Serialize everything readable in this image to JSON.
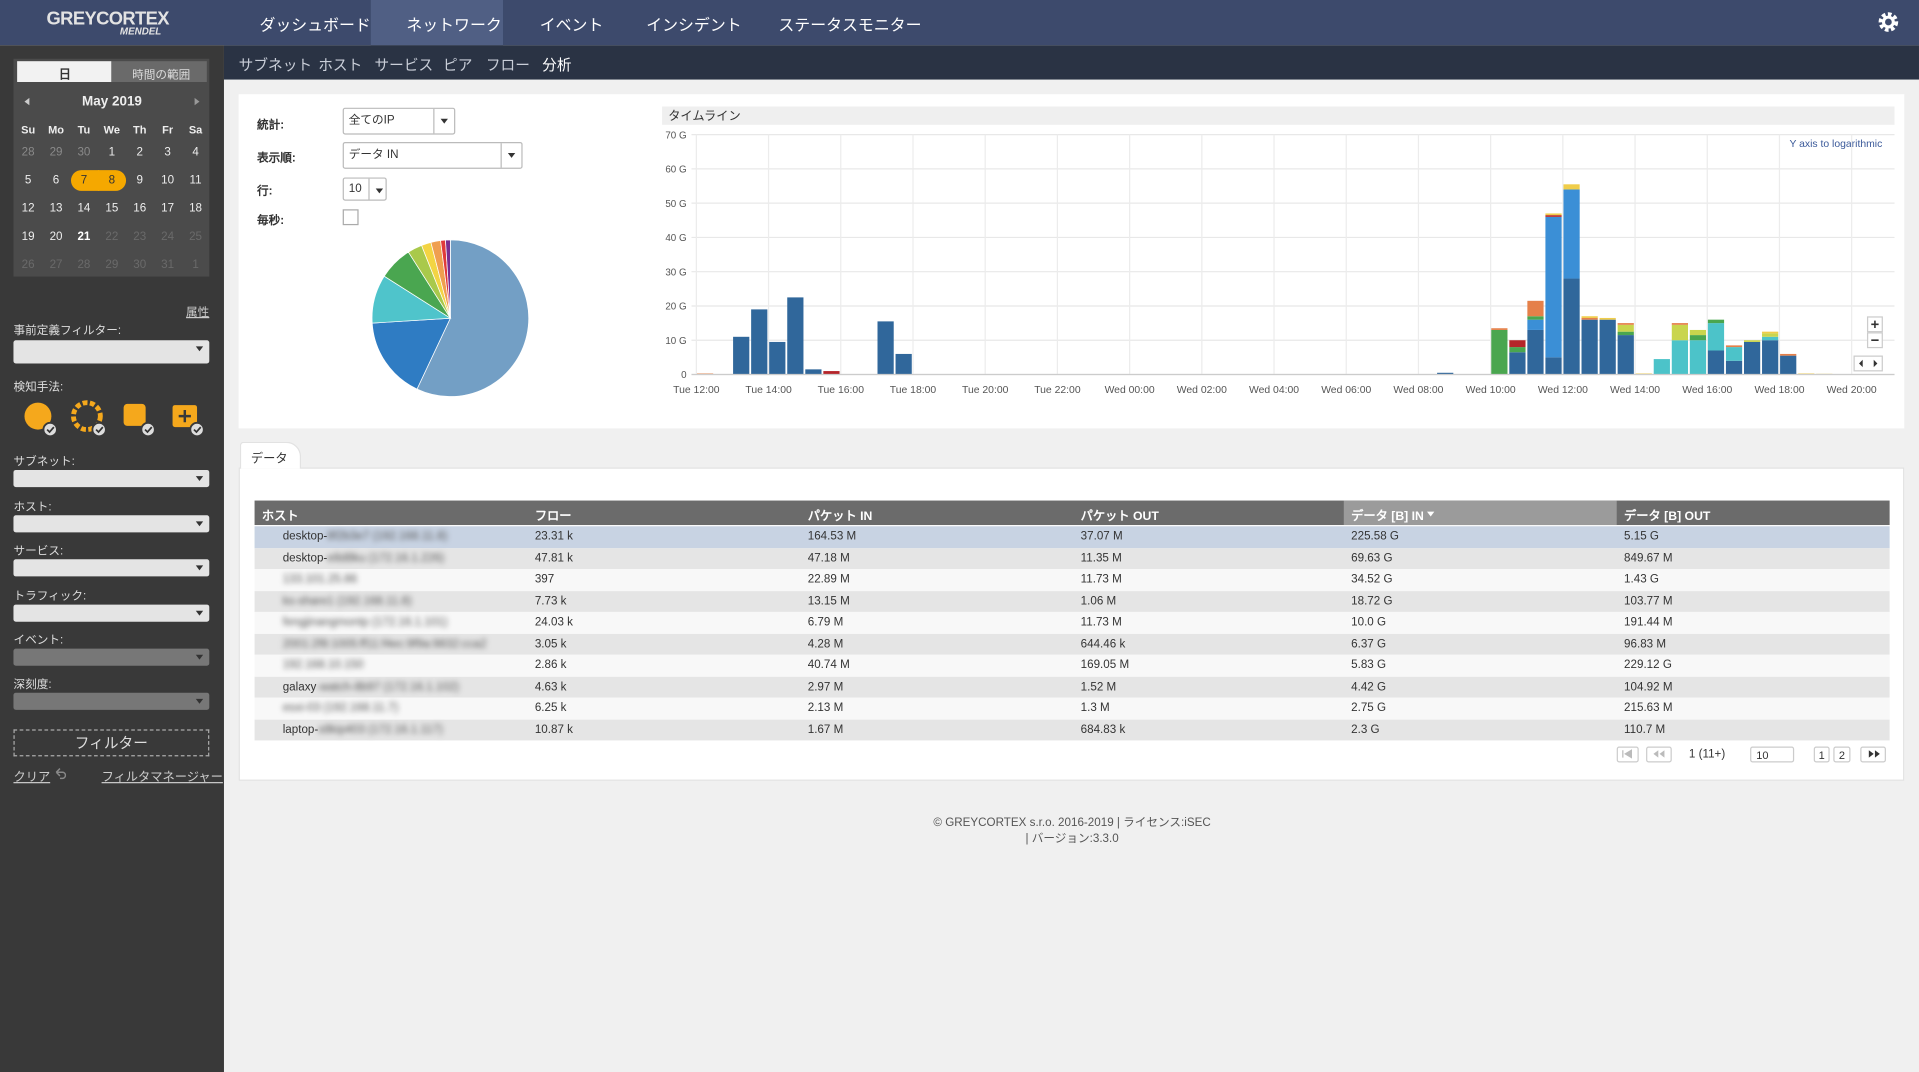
{
  "navbar": {
    "logo": "GREYCORTEX",
    "logo_sub": "MENDEL",
    "items": [
      "ダッシュボード",
      "ネットワーク",
      "イベント",
      "インシデント",
      "ステータスモニター"
    ],
    "active": 1
  },
  "subnav": {
    "items": [
      "サブネット",
      "ホスト",
      "サービス",
      "ピア",
      "フロー",
      "分析"
    ],
    "active": 5
  },
  "sidebar": {
    "calendar": {
      "tabs": [
        "日",
        "時間の範囲"
      ],
      "month": "May 2019",
      "weekdays": [
        "Su",
        "Mo",
        "Tu",
        "We",
        "Th",
        "Fr",
        "Sa"
      ],
      "days": [
        28,
        29,
        30,
        1,
        2,
        3,
        4,
        5,
        6,
        7,
        8,
        9,
        10,
        11,
        12,
        13,
        14,
        15,
        16,
        17,
        18,
        19,
        20,
        21,
        22,
        23,
        24,
        25,
        26,
        27,
        28,
        29,
        30,
        31,
        1
      ],
      "day_state": [
        "other",
        "other",
        "other",
        "cur",
        "cur",
        "cur",
        "cur",
        "cur",
        "cur",
        "sel",
        "sel",
        "cur",
        "cur",
        "cur",
        "cur",
        "cur",
        "cur",
        "cur",
        "cur",
        "cur",
        "cur",
        "cur",
        "cur",
        "today",
        "future",
        "future",
        "future",
        "future",
        "future",
        "future",
        "future",
        "future",
        "future",
        "future",
        "next"
      ]
    },
    "attr_link": "属性",
    "predefined_label": "事前定義フィルター:",
    "detection_label": "検知手法:",
    "filters": [
      "サブネット:",
      "ホスト:",
      "サービス:",
      "トラフィック:",
      "イベント:",
      "深刻度:"
    ],
    "filter_button": "フィルター",
    "clear": "クリア",
    "manager": "フィルタマネージャー"
  },
  "form": {
    "stat_label": "統計:",
    "stat_value": "全てのIP",
    "order_label": "表示順:",
    "order_value": "データ IN",
    "rows_label": "行:",
    "rows_value": "10",
    "persec_label": "毎秒:"
  },
  "chart_data": [
    {
      "type": "pie",
      "values": [
        57,
        17,
        10,
        7,
        3,
        2,
        2,
        1,
        1
      ],
      "colors": [
        "#739fc5",
        "#2f7cc3",
        "#4fc4cb",
        "#4aa650",
        "#a9c94b",
        "#f3d443",
        "#ef9f4f",
        "#e03a3a",
        "#7b2d8e"
      ]
    },
    {
      "type": "bar",
      "stacked": true,
      "title": "タイムライン",
      "annotation": "Y axis to logarithmic",
      "categories": [
        "Tue 12:00",
        null,
        null,
        null,
        "Tue 14:00",
        null,
        null,
        null,
        "Tue 16:00",
        null,
        null,
        null,
        "Tue 18:00",
        null,
        null,
        null,
        "Tue 20:00",
        null,
        null,
        null,
        "Tue 22:00",
        null,
        null,
        null,
        "Wed 00:00",
        null,
        null,
        null,
        "Wed 02:00",
        null,
        null,
        null,
        "Wed 04:00",
        null,
        null,
        null,
        "Wed 06:00",
        null,
        null,
        null,
        "Wed 08:00",
        null,
        null,
        null,
        "Wed 10:00",
        null,
        null,
        null,
        "Wed 12:00",
        null,
        null,
        null,
        "Wed 14:00",
        null,
        null,
        null,
        "Wed 16:00",
        null,
        null,
        null,
        "Wed 18:00",
        null,
        null,
        null,
        "Wed 20:00",
        null
      ],
      "series": [
        {
          "color": "#30679b",
          "values": [
            0,
            0,
            11,
            19,
            9.5,
            22.5,
            1.5,
            0,
            0,
            0,
            15.5,
            6,
            0,
            0,
            0,
            0,
            0,
            0,
            0,
            0,
            0,
            0,
            0,
            0,
            0,
            0,
            0,
            0,
            0,
            0,
            0,
            0,
            0,
            0,
            0,
            0,
            0,
            0,
            0,
            0,
            0,
            0.5,
            0,
            0,
            0,
            6.5,
            13,
            5,
            28,
            16,
            16,
            11.5,
            0,
            0,
            0,
            0,
            7,
            4,
            9.5,
            10,
            5.5,
            0,
            0,
            0,
            0,
            0
          ]
        },
        {
          "color": "#3b8fd6",
          "values": [
            0,
            0,
            0,
            0,
            0,
            0,
            0,
            0,
            0,
            0,
            0,
            0,
            0,
            0,
            0,
            0,
            0,
            0,
            0,
            0,
            0,
            0,
            0,
            0,
            0,
            0,
            0,
            0,
            0,
            0,
            0,
            0,
            0,
            0,
            0,
            0,
            0,
            0,
            0,
            0,
            0,
            0,
            0,
            0,
            0,
            0,
            3,
            41,
            26,
            0,
            0,
            0,
            0,
            0,
            0,
            0,
            0,
            0,
            0,
            0,
            0,
            0,
            0,
            0,
            0,
            0
          ]
        },
        {
          "color": "#4cc3c9",
          "values": [
            0,
            0,
            0,
            0,
            0,
            0,
            0,
            0,
            0,
            0,
            0,
            0,
            0,
            0,
            0,
            0,
            0,
            0,
            0,
            0,
            0,
            0,
            0,
            0,
            0,
            0,
            0,
            0,
            0,
            0,
            0,
            0,
            0,
            0,
            0,
            0,
            0,
            0,
            0,
            0,
            0,
            0,
            0,
            0,
            0,
            0,
            0,
            0,
            0,
            0,
            0,
            0,
            0,
            4.5,
            10,
            10,
            8,
            4,
            0,
            1,
            0,
            0,
            0,
            0,
            0,
            0
          ]
        },
        {
          "color": "#4aa64f",
          "values": [
            0,
            0,
            0,
            0,
            0,
            0,
            0,
            0,
            0,
            0,
            0,
            0,
            0,
            0,
            0,
            0,
            0,
            0,
            0,
            0,
            0,
            0,
            0,
            0,
            0,
            0,
            0,
            0,
            0,
            0,
            0,
            0,
            0,
            0,
            0,
            0,
            0,
            0,
            0,
            0,
            0,
            0,
            0,
            0,
            13,
            1.5,
            1,
            0,
            0,
            0,
            0,
            1,
            0,
            0,
            0,
            1.5,
            1,
            0,
            0,
            0,
            0,
            0,
            0,
            0,
            0,
            0
          ]
        },
        {
          "color": "#c9d54d",
          "values": [
            0,
            0,
            0,
            0,
            0,
            0,
            0,
            0,
            0,
            0,
            0,
            0,
            0,
            0,
            0,
            0,
            0,
            0,
            0,
            0,
            0,
            0,
            0,
            0,
            0,
            0,
            0,
            0,
            0,
            0,
            0,
            0,
            0,
            0,
            0,
            0,
            0,
            0,
            0,
            0,
            0,
            0,
            0,
            0,
            0,
            0,
            0,
            0,
            0,
            0,
            0,
            2,
            0,
            0,
            4.5,
            1.5,
            0,
            0,
            0.5,
            1,
            0,
            0,
            0,
            0,
            0,
            0
          ]
        },
        {
          "color": "#e58049",
          "values": [
            0.3,
            0,
            0,
            0,
            0,
            0,
            0,
            0,
            0,
            0,
            0,
            0,
            0,
            0,
            0,
            0,
            0,
            0,
            0,
            0,
            0,
            0,
            0,
            0,
            0,
            0,
            0,
            0,
            0,
            0,
            0,
            0,
            0,
            0,
            0,
            0,
            0,
            0,
            0,
            0,
            0,
            0,
            0,
            0,
            0.5,
            0,
            4.5,
            0,
            0,
            0.5,
            0,
            0.5,
            0,
            0,
            0.5,
            0,
            0,
            0.5,
            0,
            0,
            0.5,
            0,
            0,
            0,
            0,
            0
          ]
        },
        {
          "color": "#b5252a",
          "values": [
            0,
            0,
            0,
            0,
            0,
            0,
            0,
            1,
            0,
            0,
            0,
            0,
            0,
            0,
            0,
            0,
            0,
            0,
            0,
            0,
            0,
            0,
            0,
            0,
            0,
            0,
            0,
            0,
            0,
            0,
            0,
            0,
            0,
            0,
            0,
            0,
            0,
            0,
            0,
            0,
            0,
            0,
            0,
            0,
            0,
            2,
            0,
            0.5,
            0,
            0,
            0,
            0,
            0,
            0,
            0,
            0,
            0,
            0,
            0,
            0,
            0,
            0,
            0,
            0,
            0,
            0
          ]
        },
        {
          "color": "#f0cd4a",
          "values": [
            0,
            0,
            0,
            0,
            0,
            0,
            0,
            0,
            0,
            0,
            0,
            0,
            0,
            0,
            0,
            0,
            0,
            0,
            0,
            0,
            0,
            0,
            0,
            0,
            0,
            0,
            0,
            0,
            0,
            0,
            0,
            0,
            0,
            0,
            0,
            0,
            0,
            0,
            0,
            0,
            0,
            0,
            0,
            0,
            0,
            0,
            0,
            0.5,
            1.5,
            0.5,
            0.5,
            0,
            0.3,
            0,
            0,
            0,
            0,
            0,
            0,
            0.5,
            0,
            0.3,
            0.2,
            0,
            0,
            0
          ]
        }
      ],
      "ylim": [
        0,
        70
      ],
      "yticks": [
        0,
        {
          "value": 10,
          "label": "10 G"
        },
        {
          "value": 20,
          "label": "20 G"
        },
        {
          "value": 30,
          "label": "30 G"
        },
        {
          "value": 40,
          "label": "40 G"
        },
        {
          "value": 50,
          "label": "50 G"
        },
        {
          "value": 60,
          "label": "60 G"
        },
        {
          "value": 70,
          "label": "70 G"
        }
      ],
      "grid": true
    }
  ],
  "tab": "データ",
  "table": {
    "columns": [
      "ホスト",
      "フロー",
      "パケット IN",
      "パケット OUT",
      "データ [B] IN",
      "データ [B] OUT"
    ],
    "sort_column": 4,
    "selected_row": 0,
    "rows": [
      {
        "icon": "pc",
        "host": "desktop-",
        "host_blurred": "8f2b3e7 (192.168.11.8)",
        "flows": "23.31 k",
        "packets_in": "164.53 M",
        "packets_out": "37.07 M",
        "data_in": "225.58 G",
        "data_out": "5.15 G"
      },
      {
        "icon": "pc",
        "host": "desktop-",
        "host_blurred": "e8d8ku (172.16.1.226)",
        "flows": "47.81 k",
        "packets_in": "47.18 M",
        "packets_out": "11.35 M",
        "data_in": "69.63 G",
        "data_out": "849.67 M"
      },
      {
        "icon": "jp",
        "host_blurred": "133.101.25.86",
        "flows": "397",
        "packets_in": "22.89 M",
        "packets_out": "11.73 M",
        "data_in": "34.52 G",
        "data_out": "1.43 G"
      },
      {
        "icon": "pc",
        "host_blurred": "ks-share1 (192.168.11.8)",
        "flows": "7.73 k",
        "packets_in": "13.15 M",
        "packets_out": "1.06 M",
        "data_in": "18.72 G",
        "data_out": "103.77 M"
      },
      {
        "icon": "pc",
        "host_blurred": "fengjinangmontp (172.16.1.101)",
        "flows": "24.03 k",
        "packets_in": "6.79 M",
        "packets_out": "11.73 M",
        "data_in": "10.0 G",
        "data_out": "191.44 M"
      },
      {
        "icon": "jp",
        "host_blurred": "2001:2f8:1005:ff11:f4ec:9f9a:9832:cca2",
        "flows": "3.05 k",
        "packets_in": "4.28 M",
        "packets_out": "644.46 k",
        "data_in": "6.37 G",
        "data_out": "96.83 M"
      },
      {
        "icon": "pc",
        "host_blurred": "192.168.10.150",
        "flows": "2.86 k",
        "packets_in": "40.74 M",
        "packets_out": "169.05 M",
        "data_in": "5.83 G",
        "data_out": "229.12 G"
      },
      {
        "icon": "pc",
        "host": "galaxy",
        "host_blurred": "-watch-8b97 (172.16.1.102)",
        "flows": "4.63 k",
        "packets_in": "2.97 M",
        "packets_out": "1.52 M",
        "data_in": "4.42 G",
        "data_out": "104.92 M"
      },
      {
        "icon": "pc",
        "host_blurred": "esxi-03 (192.168.11.7)",
        "flows": "6.25 k",
        "packets_in": "2.13 M",
        "packets_out": "1.3 M",
        "data_in": "2.75 G",
        "data_out": "215.63 M"
      },
      {
        "icon": "pc",
        "host": "laptop-",
        "host_blurred": "s8kip403 (172.16.1.117)",
        "flows": "10.87 k",
        "packets_in": "1.67 M",
        "packets_out": "684.83 k",
        "data_in": "2.3 G",
        "data_out": "110.7 M"
      }
    ]
  },
  "pagination": {
    "info": "1 (11+)",
    "per_page": "10",
    "pages": [
      "1",
      "2"
    ]
  },
  "footer": {
    "line1": "© GREYCORTEX s.r.o. 2016-2019 | ライセンス:iSEC",
    "line2": "| バージョン:3.3.0"
  }
}
